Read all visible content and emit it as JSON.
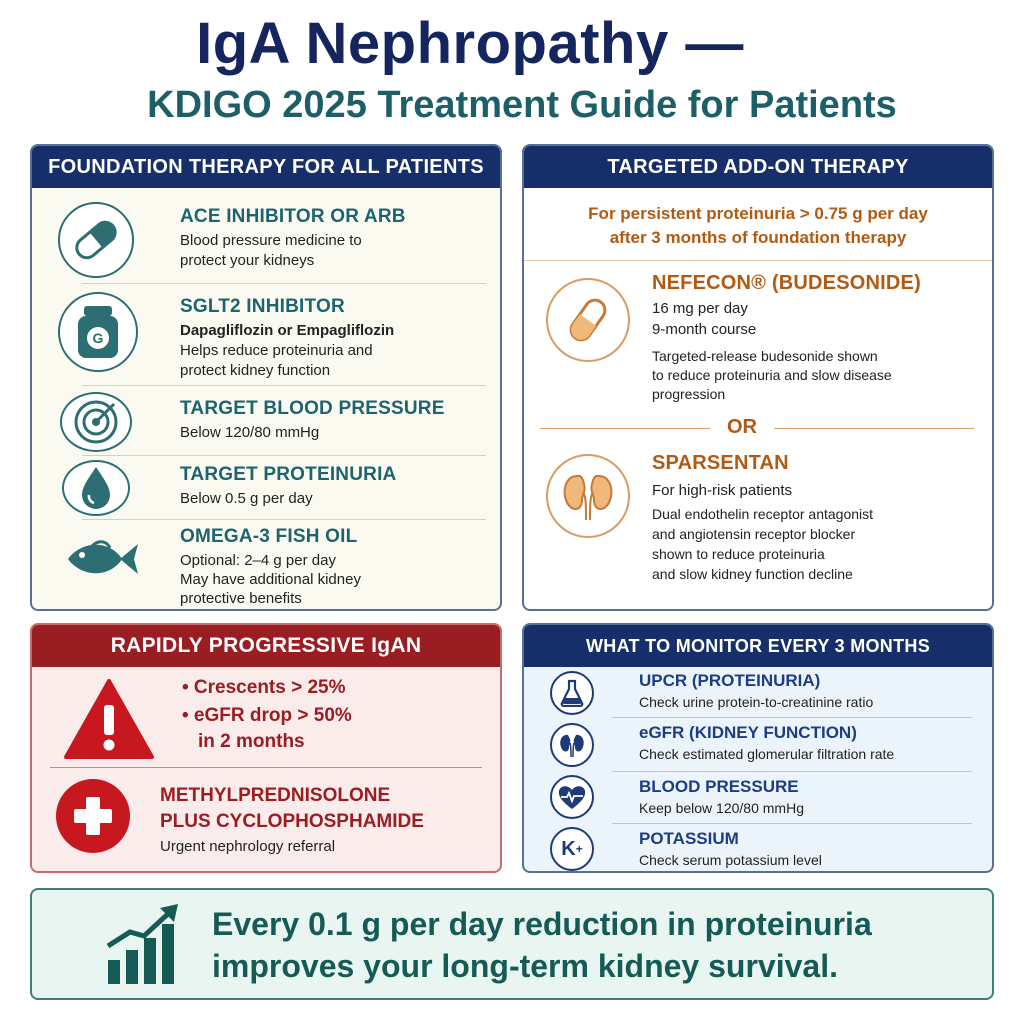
{
  "title": {
    "line1": "IgA Nephropathy —",
    "line2": "KDIGO 2025 Treatment Guide for Patients"
  },
  "foundation": {
    "header": "FOUNDATION THERAPY FOR ALL PATIENTS",
    "items": [
      {
        "icon": "capsule-icon",
        "title": "ACE INHIBITOR OR ARB",
        "lines": [
          "Blood pressure medicine to",
          "protect your kidneys"
        ]
      },
      {
        "icon": "pill-bottle-icon",
        "title": "SGLT2 INHIBITOR",
        "subtitle": "Dapagliflozin or Empagliflozin",
        "lines": [
          "Helps reduce proteinuria and",
          "protect kidney function"
        ]
      },
      {
        "icon": "target-icon",
        "title": "TARGET BLOOD PRESSURE",
        "lines": [
          "Below 120/80 mmHg"
        ]
      },
      {
        "icon": "droplet-icon",
        "title": "TARGET PROTEINURIA",
        "lines": [
          "Below 0.5 g per day"
        ]
      },
      {
        "icon": "fish-icon",
        "title": "OMEGA-3 FISH OIL",
        "lines": [
          "Optional: 2–4 g per day",
          "May have additional kidney",
          "protective benefits"
        ]
      }
    ]
  },
  "targeted": {
    "header": "TARGETED ADD-ON THERAPY",
    "intro": [
      "For persistent proteinuria > 0.75 g per day",
      "after 3 months of foundation therapy"
    ],
    "option1": {
      "title": "NEFECON® (BUDESONIDE)",
      "lines": [
        "16 mg per day",
        "9-month course"
      ],
      "desc": [
        "Targeted-release budesonide shown",
        "to reduce proteinuria and slow disease",
        "progression"
      ]
    },
    "or": "OR",
    "option2": {
      "title": "SPARSENTAN",
      "lines": [
        "For high-risk patients"
      ],
      "desc": [
        "Dual endothelin receptor antagonist",
        "and angiotensin receptor blocker",
        "shown to reduce proteinuria",
        "and slow kidney function decline"
      ]
    }
  },
  "rapid": {
    "header": "RAPIDLY PROGRESSIVE IgAN",
    "bullets": [
      "• Crescents > 25%",
      "• eGFR drop > 50%",
      "in 2 months"
    ],
    "treatment": [
      "METHYLPREDNISOLONE",
      "PLUS CYCLOPHOSPHAMIDE"
    ],
    "note": "Urgent nephrology referral"
  },
  "monitor": {
    "header": "WHAT TO MONITOR EVERY 3 MONTHS",
    "items": [
      {
        "icon": "flask-icon",
        "title": "UPCR (PROTEINURIA)",
        "desc": "Check urine protein-to-creatinine ratio"
      },
      {
        "icon": "kidneys-icon",
        "title": "eGFR (KIDNEY FUNCTION)",
        "desc": "Check estimated glomerular filtration rate"
      },
      {
        "icon": "heart-pulse-icon",
        "title": "BLOOD PRESSURE",
        "desc": "Keep below 120/80 mmHg"
      },
      {
        "icon": "potassium-icon",
        "title": "POTASSIUM",
        "desc": "Check serum potassium level",
        "symbol": "K",
        "symbol_sup": "+"
      }
    ]
  },
  "banner": {
    "lines": [
      "Every 0.1 g per day reduction in proteinuria",
      "improves your long-term kidney survival."
    ]
  },
  "colors": {
    "navy": "#162f6a",
    "teal": "#1d6470",
    "orange": "#b25a12",
    "red": "#9a1d22"
  }
}
